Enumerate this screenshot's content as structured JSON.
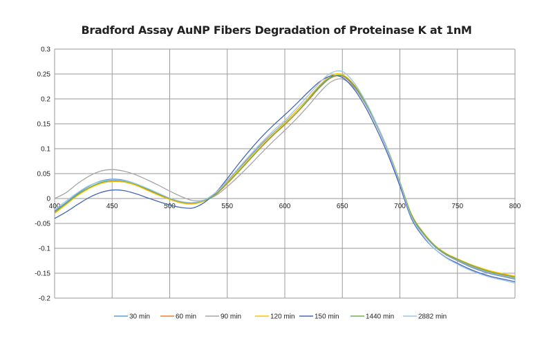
{
  "chart_data": {
    "type": "line",
    "title": "Bradford Assay AuNP Fibers Degradation of Proteinase K at 1nM",
    "xlabel": "",
    "ylabel": "",
    "xlim": [
      400,
      800
    ],
    "ylim": [
      -0.2,
      0.3
    ],
    "x_ticks": [
      "400",
      "450",
      "500",
      "550",
      "600",
      "650",
      "700",
      "750",
      "800"
    ],
    "y_ticks": [
      "0.3",
      "0.25",
      "0.2",
      "0.15",
      "0.1",
      "0.05",
      "0",
      "-0.05",
      "-0.1",
      "-0.15",
      "-0.2"
    ],
    "grid": true,
    "legend": "bottom",
    "x": [
      400,
      410,
      420,
      430,
      440,
      450,
      460,
      470,
      480,
      490,
      500,
      510,
      520,
      530,
      540,
      550,
      560,
      570,
      580,
      590,
      600,
      610,
      620,
      630,
      640,
      650,
      660,
      670,
      680,
      690,
      700,
      710,
      720,
      730,
      740,
      750,
      760,
      770,
      780,
      790,
      800
    ],
    "series": [
      {
        "name": "30 min",
        "color": "#5b9bd5",
        "values": [
          -0.025,
          -0.008,
          0.01,
          0.025,
          0.035,
          0.039,
          0.037,
          0.03,
          0.02,
          0.01,
          0.0,
          -0.007,
          -0.009,
          -0.003,
          0.012,
          0.035,
          0.06,
          0.085,
          0.11,
          0.132,
          0.153,
          0.176,
          0.2,
          0.225,
          0.244,
          0.246,
          0.225,
          0.19,
          0.145,
          0.092,
          0.03,
          -0.035,
          -0.07,
          -0.096,
          -0.113,
          -0.125,
          -0.136,
          -0.145,
          -0.152,
          -0.157,
          -0.162
        ]
      },
      {
        "name": "60 min",
        "color": "#ed7d31",
        "values": [
          -0.028,
          -0.011,
          0.007,
          0.021,
          0.031,
          0.035,
          0.034,
          0.028,
          0.018,
          0.008,
          -0.001,
          -0.008,
          -0.01,
          -0.005,
          0.008,
          0.03,
          0.054,
          0.079,
          0.104,
          0.127,
          0.148,
          0.171,
          0.196,
          0.222,
          0.242,
          0.246,
          0.227,
          0.192,
          0.147,
          0.094,
          0.032,
          -0.033,
          -0.068,
          -0.094,
          -0.111,
          -0.122,
          -0.132,
          -0.14,
          -0.147,
          -0.152,
          -0.157
        ]
      },
      {
        "name": "90 min",
        "color": "#a5a5a5",
        "values": [
          0.0,
          0.012,
          0.03,
          0.045,
          0.055,
          0.058,
          0.055,
          0.048,
          0.038,
          0.027,
          0.015,
          0.004,
          -0.004,
          -0.003,
          0.006,
          0.024,
          0.045,
          0.068,
          0.092,
          0.115,
          0.137,
          0.16,
          0.185,
          0.212,
          0.234,
          0.24,
          0.223,
          0.19,
          0.146,
          0.094,
          0.032,
          -0.033,
          -0.069,
          -0.095,
          -0.112,
          -0.124,
          -0.134,
          -0.143,
          -0.15,
          -0.155,
          -0.16
        ]
      },
      {
        "name": "120 min",
        "color": "#ffc000",
        "values": [
          -0.03,
          -0.012,
          0.006,
          0.02,
          0.03,
          0.034,
          0.033,
          0.027,
          0.017,
          0.007,
          -0.002,
          -0.009,
          -0.011,
          -0.005,
          0.01,
          0.033,
          0.058,
          0.083,
          0.108,
          0.131,
          0.152,
          0.176,
          0.201,
          0.227,
          0.247,
          0.249,
          0.229,
          0.194,
          0.149,
          0.096,
          0.034,
          -0.031,
          -0.067,
          -0.093,
          -0.11,
          -0.121,
          -0.131,
          -0.139,
          -0.146,
          -0.151,
          -0.156
        ]
      },
      {
        "name": "150 min",
        "color": "#4465b8",
        "values": [
          -0.04,
          -0.027,
          -0.012,
          0.002,
          0.012,
          0.017,
          0.016,
          0.01,
          0.002,
          -0.006,
          -0.013,
          -0.018,
          -0.019,
          -0.008,
          0.012,
          0.04,
          0.07,
          0.098,
          0.124,
          0.147,
          0.168,
          0.19,
          0.213,
          0.234,
          0.246,
          0.243,
          0.22,
          0.184,
          0.138,
          0.086,
          0.025,
          -0.04,
          -0.076,
          -0.101,
          -0.118,
          -0.13,
          -0.141,
          -0.15,
          -0.157,
          -0.162,
          -0.167
        ]
      },
      {
        "name": "1440 min",
        "color": "#70ad47",
        "values": [
          -0.027,
          -0.01,
          0.008,
          0.022,
          0.032,
          0.036,
          0.035,
          0.029,
          0.019,
          0.009,
          0.0,
          -0.007,
          -0.009,
          -0.004,
          0.009,
          0.031,
          0.055,
          0.08,
          0.105,
          0.128,
          0.149,
          0.172,
          0.197,
          0.223,
          0.243,
          0.247,
          0.228,
          0.193,
          0.148,
          0.095,
          0.033,
          -0.032,
          -0.068,
          -0.094,
          -0.111,
          -0.122,
          -0.132,
          -0.141,
          -0.148,
          -0.153,
          -0.158
        ]
      },
      {
        "name": "2882 min",
        "color": "#9dc3e6",
        "values": [
          -0.022,
          -0.005,
          0.012,
          0.026,
          0.034,
          0.037,
          0.036,
          0.03,
          0.021,
          0.011,
          0.001,
          -0.006,
          -0.008,
          -0.003,
          0.012,
          0.036,
          0.062,
          0.088,
          0.113,
          0.136,
          0.157,
          0.181,
          0.206,
          0.232,
          0.252,
          0.255,
          0.233,
          0.196,
          0.149,
          0.094,
          0.031,
          -0.037,
          -0.074,
          -0.101,
          -0.119,
          -0.132,
          -0.143,
          -0.152,
          -0.159,
          -0.164,
          -0.17
        ]
      }
    ]
  }
}
